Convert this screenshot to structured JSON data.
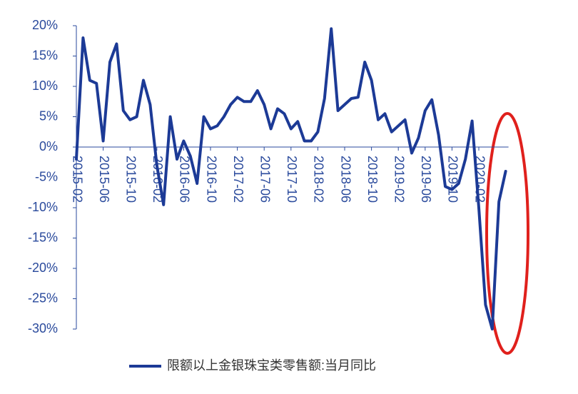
{
  "chart_data": {
    "type": "line",
    "categories": [
      "2015-02",
      null,
      null,
      null,
      "2015-06",
      null,
      null,
      null,
      "2015-10",
      null,
      null,
      null,
      "2016-02",
      null,
      null,
      null,
      "2016-06",
      null,
      null,
      null,
      "2016-10",
      null,
      null,
      null,
      "2017-02",
      null,
      null,
      null,
      "2017-06",
      null,
      null,
      null,
      "2017-10",
      null,
      null,
      null,
      "2018-02",
      null,
      null,
      null,
      "2018-06",
      null,
      null,
      null,
      "2018-10",
      null,
      null,
      null,
      "2019-02",
      null,
      null,
      null,
      "2019-06",
      null,
      null,
      null,
      "2019-10",
      null,
      null,
      null,
      "2020-02",
      null,
      null,
      null,
      null
    ],
    "series": [
      {
        "name": "限额以上金银珠宝类零售额:当月同比",
        "color": "#1c3a96",
        "values": [
          -2,
          18,
          11,
          10.5,
          1,
          14,
          17,
          6,
          4.5,
          5,
          11,
          7,
          -3,
          -9.5,
          5,
          -2,
          1,
          -1.5,
          -6,
          5,
          3,
          3.5,
          5,
          7,
          8.2,
          7.5,
          7.5,
          9.3,
          7,
          3,
          6.3,
          5.5,
          3,
          4.2,
          1,
          1,
          2.5,
          8,
          19.5,
          6,
          7,
          8,
          8.2,
          14,
          11,
          4.5,
          5.5,
          2.5,
          3.5,
          4.5,
          -1,
          1.5,
          6,
          7.8,
          2,
          -6.5,
          -7,
          -6,
          -2,
          4.3,
          -10,
          -26,
          -30,
          -9,
          -4
        ]
      }
    ],
    "ylim": [
      -30,
      20
    ],
    "yticks": [
      {
        "value": -30,
        "label": "-30%"
      },
      {
        "value": -25,
        "label": "-25%"
      },
      {
        "value": -20,
        "label": "-20%"
      },
      {
        "value": -15,
        "label": "-15%"
      },
      {
        "value": -10,
        "label": "-10%"
      },
      {
        "value": -5,
        "label": "-5%"
      },
      {
        "value": 0,
        "label": "0%"
      },
      {
        "value": 5,
        "label": "5%"
      },
      {
        "value": 10,
        "label": "10%"
      },
      {
        "value": 15,
        "label": "15%"
      },
      {
        "value": 20,
        "label": "20%"
      }
    ],
    "grid": false
  }
}
